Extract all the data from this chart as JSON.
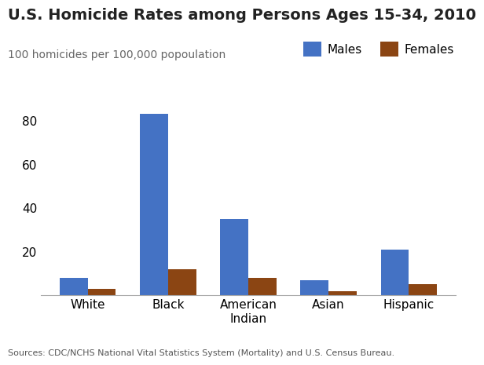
{
  "title": "U.S. Homicide Rates among Persons Ages 15-34, 2010",
  "subtitle": "100 homicides per 100,000 popoulation",
  "categories": [
    "White",
    "Black",
    "American\nIndian",
    "Asian",
    "Hispanic"
  ],
  "males": [
    8,
    83,
    35,
    7,
    21
  ],
  "females": [
    3,
    12,
    8,
    2,
    5
  ],
  "male_color": "#4472C4",
  "female_color": "#8B4513",
  "ylim": [
    0,
    90
  ],
  "yticks": [
    20,
    40,
    60,
    80
  ],
  "bar_width": 0.35,
  "legend_labels": [
    "Males",
    "Females"
  ],
  "source_text": "Sources: CDC/NCHS National Vital Statistics System (Mortality) and U.S. Census Bureau.",
  "title_fontsize": 14,
  "subtitle_fontsize": 10,
  "tick_fontsize": 11,
  "legend_fontsize": 11,
  "source_fontsize": 8
}
